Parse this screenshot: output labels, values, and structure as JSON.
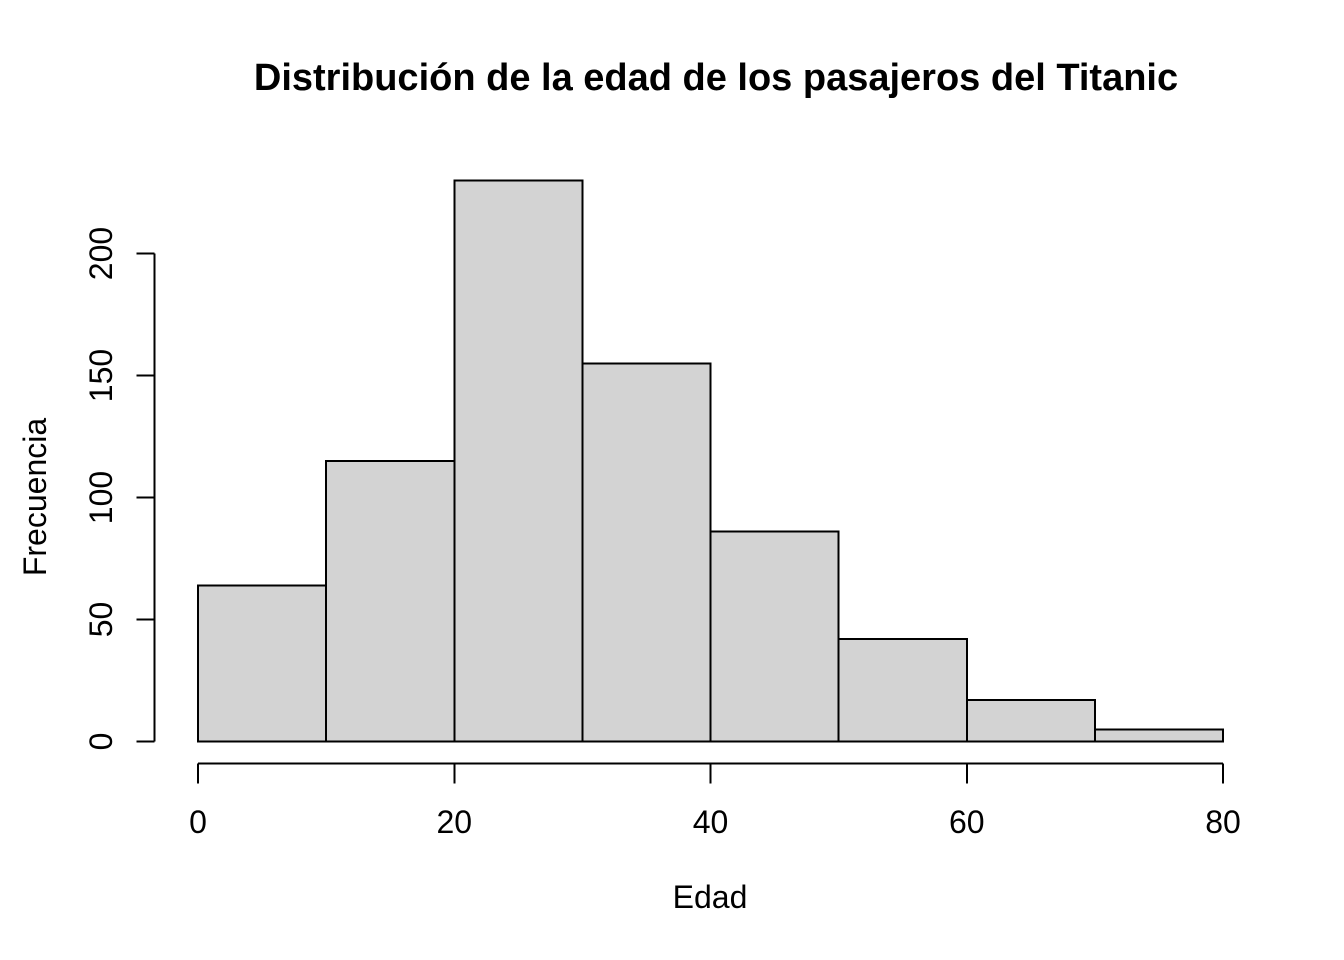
{
  "chart_data": {
    "type": "bar",
    "variant": "histogram",
    "title": "Distribución de la edad de los pasajeros del Titanic",
    "xlabel": "Edad",
    "ylabel": "Frecuencia",
    "bin_edges": [
      0,
      10,
      20,
      30,
      40,
      50,
      60,
      70,
      80
    ],
    "values": [
      64,
      115,
      230,
      155,
      86,
      42,
      17,
      5
    ],
    "x_ticks": [
      0,
      20,
      40,
      60,
      80
    ],
    "y_ticks": [
      0,
      50,
      100,
      150,
      200
    ],
    "xlim": [
      0,
      80
    ],
    "ylim": [
      0,
      230
    ],
    "grid": false,
    "legend": "none",
    "colors": {
      "bar_fill": "#d3d3d3",
      "bar_stroke": "#000000",
      "axis": "#000000",
      "text": "#000000",
      "background": "#ffffff"
    }
  }
}
